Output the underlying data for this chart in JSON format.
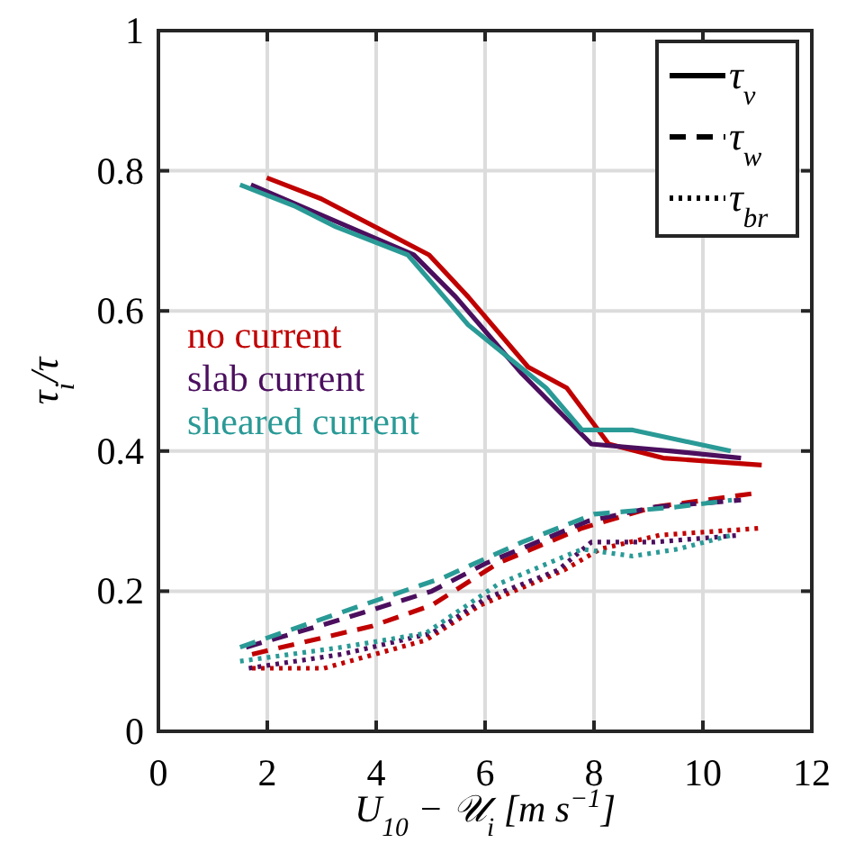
{
  "chart_data": {
    "type": "line",
    "xlabel": "U$_{10}$ − 𝒰$_{i}$ [m s$^{−1}$]",
    "ylabel": "τ$_{i}$/τ",
    "xlim": [
      0,
      12
    ],
    "xticks": [
      0,
      2,
      4,
      6,
      8,
      10,
      12
    ],
    "ylim": [
      0,
      1
    ],
    "yticks": [
      0,
      0.2,
      0.4,
      0.6,
      0.8,
      1
    ],
    "grid": true,
    "annotations": [
      "τ$_{ν}$",
      "τ$_{w}$",
      "τ$_{br}$"
    ],
    "series": [
      {
        "name": "no current",
        "color": "#c00000",
        "line_style": "solid",
        "x": [
          1.99,
          2.99,
          4.97,
          5.69,
          6.79,
          7.5,
          8.27,
          9.27,
          11.08
        ],
        "values": [
          0.79,
          0.76,
          0.68,
          0.62,
          0.52,
          0.49,
          0.41,
          0.39,
          0.38
        ]
      },
      {
        "name": "slab current",
        "color": "#4b0f5e",
        "line_style": "solid",
        "x": [
          1.7,
          4.69,
          5.46,
          6.68,
          7.95,
          9.43,
          10.7
        ],
        "values": [
          0.78,
          0.68,
          0.62,
          0.51,
          0.41,
          0.4,
          0.39
        ]
      },
      {
        "name": "sheared current",
        "color": "#2a9a96",
        "line_style": "solid",
        "x": [
          1.5,
          2.49,
          3.26,
          4.58,
          5.69,
          7.12,
          7.78,
          8.71,
          10.51
        ],
        "values": [
          0.78,
          0.75,
          0.72,
          0.68,
          0.58,
          0.49,
          0.43,
          0.43,
          0.4
        ]
      },
      {
        "color": "#c00000",
        "line_style": "dashed",
        "x": [
          1.72,
          3.92,
          5.02,
          6.24,
          7.78,
          9.1,
          10.98
        ],
        "values": [
          0.11,
          0.15,
          0.18,
          0.24,
          0.29,
          0.32,
          0.34
        ]
      },
      {
        "color": "#4b0f5e",
        "line_style": "dashed",
        "x": [
          1.61,
          3.37,
          5.02,
          6.02,
          7.89,
          9.1,
          10.7
        ],
        "values": [
          0.12,
          0.16,
          0.2,
          0.24,
          0.3,
          0.32,
          0.33
        ]
      },
      {
        "color": "#2a9a96",
        "line_style": "dashed",
        "x": [
          1.5,
          3.37,
          5.25,
          6.68,
          8.0,
          9.5,
          10.53
        ],
        "values": [
          0.12,
          0.17,
          0.22,
          0.27,
          0.31,
          0.32,
          0.33
        ]
      },
      {
        "color": "#c00000",
        "line_style": "dotted",
        "x": [
          1.72,
          3.04,
          4.91,
          5.91,
          7.45,
          8.11,
          9.21,
          11.08
        ],
        "values": [
          0.09,
          0.09,
          0.13,
          0.18,
          0.23,
          0.26,
          0.28,
          0.29
        ]
      },
      {
        "color": "#4b0f5e",
        "line_style": "dotted",
        "x": [
          1.66,
          3.37,
          5.02,
          6.02,
          7.34,
          7.95,
          9.1,
          10.7
        ],
        "values": [
          0.09,
          0.11,
          0.14,
          0.19,
          0.23,
          0.27,
          0.27,
          0.28
        ]
      },
      {
        "color": "#2a9a96",
        "line_style": "dotted",
        "x": [
          1.5,
          3.37,
          4.91,
          6.24,
          7.78,
          8.71,
          9.54,
          10.53
        ],
        "values": [
          0.1,
          0.12,
          0.14,
          0.21,
          0.26,
          0.25,
          0.26,
          0.28
        ]
      }
    ]
  }
}
